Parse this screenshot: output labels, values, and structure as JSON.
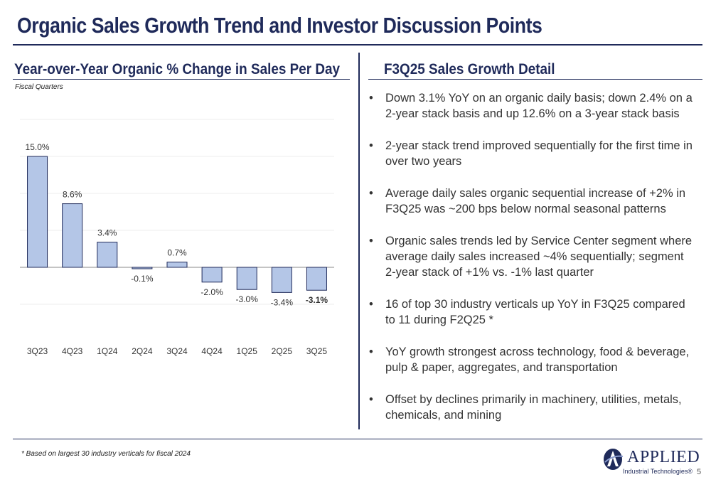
{
  "page": {
    "title": "Organic Sales Growth Trend and Investor Discussion Points",
    "page_number": "5",
    "footnote": "* Based on largest 30 industry verticals for fiscal 2024"
  },
  "chart_panel": {
    "title": "Year-over-Year Organic % Change in Sales Per Day",
    "fiscal_label": "Fiscal Quarters"
  },
  "detail": {
    "title": "F3Q25 Sales Growth Detail",
    "bullets": [
      "Down 3.1% YoY on an organic daily basis; down 2.4% on a 2-year stack basis and up 12.6% on a 3-year stack basis",
      "2-year stack trend improved sequentially for the first time in over two years",
      "Average daily sales organic sequential increase of +2% in F3Q25 was ~200 bps below normal seasonal patterns",
      "Organic sales trends led by Service Center segment where average daily sales increased ~4% sequentially; segment 2-year stack of +1% vs. -1% last quarter",
      "16 of top 30 industry verticals up YoY in F3Q25 compared to 11 during F2Q25 *",
      "YoY growth strongest across technology, food & beverage, pulp & paper, aggregates, and transportation",
      "Offset by declines primarily in machinery, utilities, metals, chemicals, and mining"
    ]
  },
  "logo": {
    "name": "APPLIED",
    "subtitle": "Industrial Technologies®"
  },
  "chart_data": {
    "type": "bar",
    "title": "Year-over-Year Organic % Change in Sales Per Day",
    "xlabel": "Fiscal Quarters",
    "ylabel": "",
    "categories": [
      "3Q23",
      "4Q23",
      "1Q24",
      "2Q24",
      "3Q24",
      "4Q24",
      "1Q25",
      "2Q25",
      "3Q25"
    ],
    "values": [
      15.0,
      8.6,
      3.4,
      -0.1,
      0.7,
      -2.0,
      -3.0,
      -3.4,
      -3.1
    ],
    "data_labels": [
      "15.0%",
      "8.6%",
      "3.4%",
      "-0.1%",
      "0.7%",
      "-2.0%",
      "-3.0%",
      "-3.4%",
      "-3.1%"
    ],
    "highlight_label_index": 8,
    "ylim": [
      -5,
      20
    ],
    "grid": true,
    "bar_fill": "#b4c6e7",
    "bar_stroke": "#1f2a5a"
  }
}
